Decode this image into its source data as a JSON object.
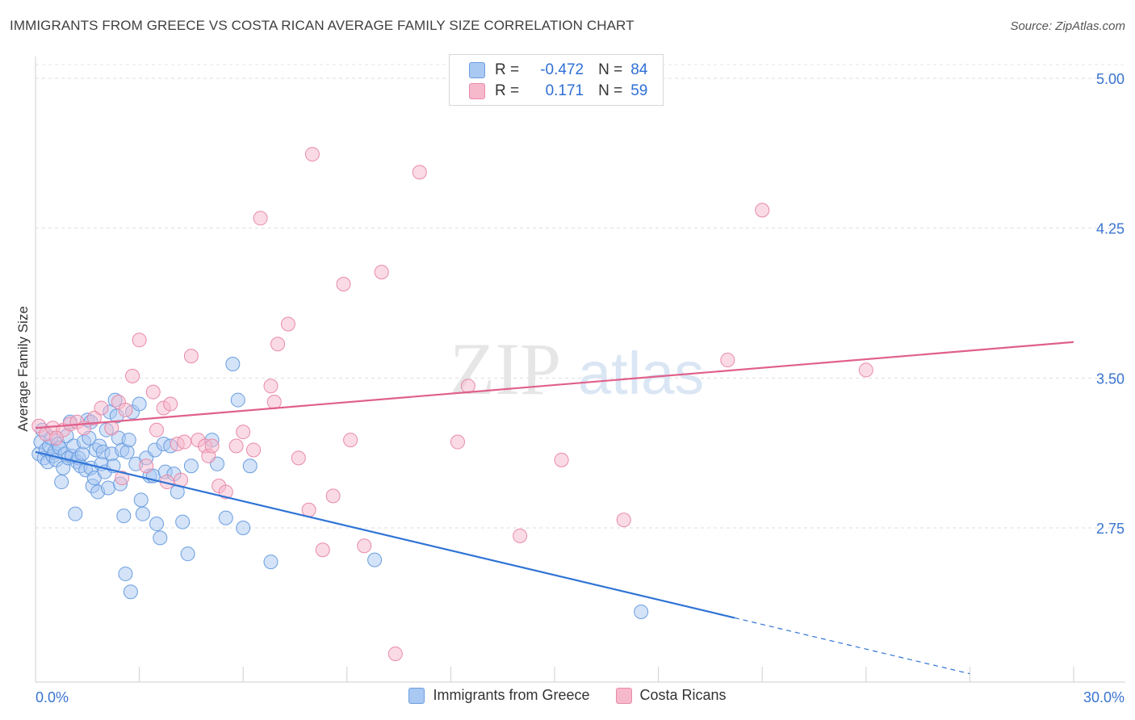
{
  "header": {
    "title": "IMMIGRANTS FROM GREECE VS COSTA RICAN AVERAGE FAMILY SIZE CORRELATION CHART",
    "source": "Source: ZipAtlas.com"
  },
  "watermark": {
    "zip": "ZIP",
    "atlas": "atlas"
  },
  "legend_box": {
    "rows": [
      {
        "r_label": "R =",
        "r_value": "-0.472",
        "n_label": "N =",
        "n_value": "84",
        "color": "#a9c8f2"
      },
      {
        "r_label": "R =",
        "r_value": "0.171",
        "n_label": "N =",
        "n_value": "59",
        "color": "#f6b8cb"
      }
    ]
  },
  "bottom_legend": {
    "items": [
      {
        "label": "Immigrants from Greece",
        "color": "#a9c8f2"
      },
      {
        "label": "Costa Ricans",
        "color": "#f6b8cb"
      }
    ]
  },
  "chart_data": {
    "type": "scatter",
    "title": "IMMIGRANTS FROM GREECE VS COSTA RICAN AVERAGE FAMILY SIZE CORRELATION CHART",
    "xlabel": "",
    "ylabel": "Average Family Size",
    "xlim": [
      0,
      30
    ],
    "ylim": [
      2.0,
      5.1
    ],
    "x_tick_labels": [
      "0.0%",
      "30.0%"
    ],
    "y_ticks": [
      2.75,
      3.5,
      4.25,
      5.0
    ],
    "y_tick_labels": [
      "2.75",
      "3.50",
      "4.25",
      "5.00"
    ],
    "grid": true,
    "legend_position": "top-center",
    "colors": {
      "blue_fill": "#a9c8f2",
      "blue_stroke": "#6a9ee0",
      "blue_line": "#2f74d6",
      "pink_fill": "#f6b8cb",
      "pink_stroke": "#e98aa8",
      "pink_line": "#e0608a",
      "tick_label": "#3a74d0"
    },
    "series": [
      {
        "name": "Immigrants from Greece",
        "r": -0.472,
        "n": 84,
        "trend": {
          "x0": 0,
          "y0": 3.13,
          "x1": 20.2,
          "y1": 2.3,
          "dash_to_x": 27.0,
          "dash_to_y": 2.02
        },
        "points": [
          [
            0.1,
            3.12
          ],
          [
            0.15,
            3.18
          ],
          [
            0.2,
            3.24
          ],
          [
            0.25,
            3.1
          ],
          [
            0.3,
            3.14
          ],
          [
            0.35,
            3.08
          ],
          [
            0.4,
            3.16
          ],
          [
            0.45,
            3.2
          ],
          [
            0.5,
            3.11
          ],
          [
            0.55,
            3.13
          ],
          [
            0.6,
            3.09
          ],
          [
            0.65,
            3.17
          ],
          [
            0.7,
            3.15
          ],
          [
            0.75,
            2.98
          ],
          [
            0.8,
            3.05
          ],
          [
            0.85,
            3.12
          ],
          [
            0.9,
            3.21
          ],
          [
            0.95,
            3.1
          ],
          [
            1.0,
            3.28
          ],
          [
            1.05,
            3.11
          ],
          [
            1.1,
            3.16
          ],
          [
            1.15,
            2.82
          ],
          [
            1.2,
            3.08
          ],
          [
            1.25,
            3.1
          ],
          [
            1.3,
            3.06
          ],
          [
            1.35,
            3.12
          ],
          [
            1.4,
            3.18
          ],
          [
            1.45,
            3.04
          ],
          [
            1.5,
            3.29
          ],
          [
            1.55,
            3.2
          ],
          [
            1.6,
            3.05
          ],
          [
            1.65,
            2.96
          ],
          [
            1.7,
            3.0
          ],
          [
            1.75,
            3.14
          ],
          [
            1.8,
            2.93
          ],
          [
            1.85,
            3.16
          ],
          [
            1.9,
            3.07
          ],
          [
            1.95,
            3.13
          ],
          [
            2.0,
            3.03
          ],
          [
            2.05,
            3.24
          ],
          [
            2.1,
            2.95
          ],
          [
            2.15,
            3.33
          ],
          [
            2.2,
            3.12
          ],
          [
            2.25,
            3.06
          ],
          [
            2.3,
            3.39
          ],
          [
            2.35,
            3.31
          ],
          [
            2.4,
            3.2
          ],
          [
            2.45,
            2.97
          ],
          [
            2.5,
            3.14
          ],
          [
            2.55,
            2.81
          ],
          [
            2.6,
            2.52
          ],
          [
            2.65,
            3.13
          ],
          [
            2.7,
            3.19
          ],
          [
            2.75,
            2.43
          ],
          [
            2.8,
            3.33
          ],
          [
            2.9,
            3.07
          ],
          [
            3.0,
            3.37
          ],
          [
            3.05,
            2.89
          ],
          [
            3.1,
            2.82
          ],
          [
            3.2,
            3.1
          ],
          [
            3.3,
            3.01
          ],
          [
            3.4,
            3.01
          ],
          [
            3.45,
            3.14
          ],
          [
            3.5,
            2.77
          ],
          [
            3.6,
            2.7
          ],
          [
            3.7,
            3.17
          ],
          [
            3.75,
            3.03
          ],
          [
            3.9,
            3.16
          ],
          [
            4.0,
            3.02
          ],
          [
            4.1,
            2.93
          ],
          [
            4.25,
            2.78
          ],
          [
            4.4,
            2.62
          ],
          [
            4.5,
            3.06
          ],
          [
            5.1,
            3.19
          ],
          [
            5.25,
            3.07
          ],
          [
            5.5,
            2.8
          ],
          [
            5.7,
            3.57
          ],
          [
            6.0,
            2.75
          ],
          [
            6.2,
            3.06
          ],
          [
            6.8,
            2.58
          ],
          [
            9.8,
            2.59
          ],
          [
            17.5,
            2.33
          ],
          [
            5.85,
            3.39
          ],
          [
            1.6,
            3.28
          ]
        ]
      },
      {
        "name": "Costa Ricans",
        "r": 0.171,
        "n": 59,
        "trend": {
          "x0": 0,
          "y0": 3.25,
          "x1": 30,
          "y1": 3.68
        },
        "points": [
          [
            0.1,
            3.26
          ],
          [
            0.3,
            3.22
          ],
          [
            0.5,
            3.25
          ],
          [
            0.8,
            3.24
          ],
          [
            1.0,
            3.27
          ],
          [
            1.2,
            3.28
          ],
          [
            1.4,
            3.25
          ],
          [
            1.7,
            3.3
          ],
          [
            1.9,
            3.35
          ],
          [
            2.2,
            3.25
          ],
          [
            2.4,
            3.38
          ],
          [
            2.6,
            3.34
          ],
          [
            2.8,
            3.51
          ],
          [
            3.0,
            3.69
          ],
          [
            3.2,
            3.06
          ],
          [
            3.4,
            3.43
          ],
          [
            3.5,
            3.24
          ],
          [
            3.7,
            3.35
          ],
          [
            3.9,
            3.37
          ],
          [
            4.1,
            3.17
          ],
          [
            4.3,
            3.18
          ],
          [
            4.5,
            3.61
          ],
          [
            4.7,
            3.19
          ],
          [
            4.9,
            3.16
          ],
          [
            5.0,
            3.11
          ],
          [
            5.3,
            2.96
          ],
          [
            5.5,
            2.93
          ],
          [
            5.8,
            3.16
          ],
          [
            6.0,
            3.23
          ],
          [
            6.3,
            3.14
          ],
          [
            6.5,
            4.3
          ],
          [
            6.8,
            3.46
          ],
          [
            7.0,
            3.67
          ],
          [
            7.3,
            3.77
          ],
          [
            7.6,
            3.1
          ],
          [
            7.9,
            2.84
          ],
          [
            8.0,
            4.62
          ],
          [
            8.3,
            2.64
          ],
          [
            8.6,
            2.91
          ],
          [
            8.9,
            3.97
          ],
          [
            9.1,
            3.19
          ],
          [
            9.5,
            2.66
          ],
          [
            10.0,
            4.03
          ],
          [
            10.4,
            2.12
          ],
          [
            11.1,
            4.53
          ],
          [
            12.2,
            3.18
          ],
          [
            12.5,
            3.46
          ],
          [
            14.0,
            2.71
          ],
          [
            15.2,
            3.09
          ],
          [
            17.0,
            2.79
          ],
          [
            20.0,
            3.59
          ],
          [
            21.0,
            4.34
          ],
          [
            24.0,
            3.54
          ],
          [
            6.9,
            3.38
          ],
          [
            4.2,
            2.99
          ],
          [
            5.1,
            3.16
          ],
          [
            2.5,
            3.0
          ],
          [
            3.8,
            2.98
          ],
          [
            0.6,
            3.2
          ]
        ]
      }
    ]
  }
}
